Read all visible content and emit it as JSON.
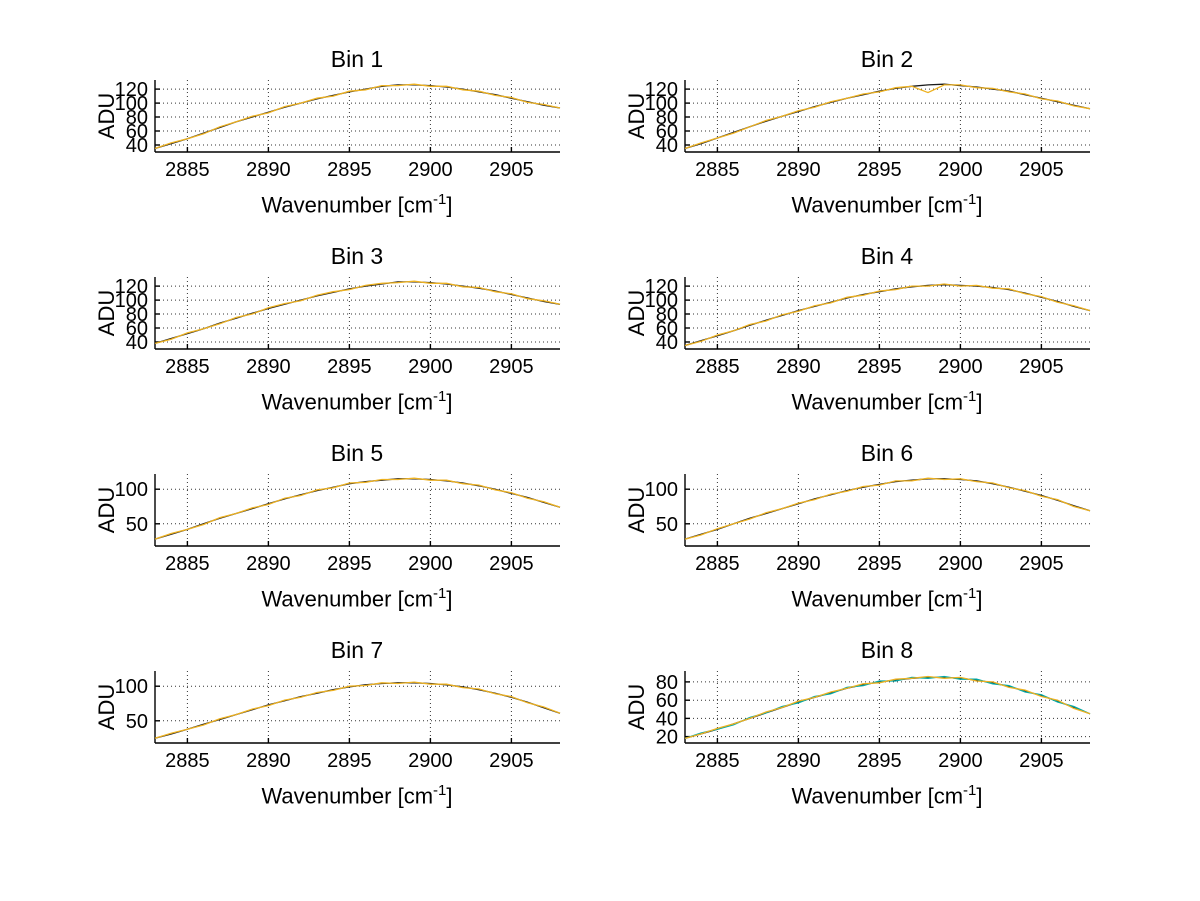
{
  "figure": {
    "background": "#ffffff"
  },
  "labels": {
    "ylabel": "ADU",
    "xlabel_base": "Wavenumber [cm",
    "xlabel_sup": "-1",
    "xlabel_close": "]"
  },
  "colors": {
    "axis": "#000000",
    "grid": "#333333",
    "trace_black": "#1a1a1a",
    "trace_yellow": "#edb120",
    "trace_teal": "#00a8a8"
  },
  "chart_x": [
    2883,
    2884,
    2885,
    2886,
    2887,
    2888,
    2889,
    2890,
    2891,
    2892,
    2893,
    2894,
    2895,
    2896,
    2897,
    2898,
    2899,
    2900,
    2901,
    2902,
    2903,
    2904,
    2905,
    2906,
    2907,
    2908
  ],
  "chart_data": [
    {
      "type": "line",
      "title": "Bin 1",
      "xlabel": "Wavenumber [cm^-1]",
      "ylabel": "ADU",
      "xlim": [
        2883,
        2908
      ],
      "ylim": [
        30,
        133
      ],
      "xticks": [
        2885,
        2890,
        2895,
        2900,
        2905
      ],
      "yticks": [
        40,
        60,
        80,
        100,
        120
      ],
      "grid": true,
      "legend": "none",
      "series": [
        {
          "name": "trace-dark",
          "color": "#1a1a1a",
          "values": [
            35,
            42,
            49,
            57,
            65,
            73,
            80,
            87,
            94,
            100,
            106,
            111,
            116,
            120,
            124,
            126,
            126,
            125,
            123,
            120,
            116,
            112,
            107,
            102,
            97,
            93
          ]
        },
        {
          "name": "trace-yellow",
          "color": "#edb120",
          "values": [
            35,
            43,
            49,
            56,
            66,
            73,
            81,
            86,
            95,
            100,
            107,
            110,
            117,
            119,
            125,
            125,
            127,
            124,
            124,
            119,
            117,
            111,
            108,
            101,
            98,
            93
          ]
        }
      ]
    },
    {
      "type": "line",
      "title": "Bin 2",
      "xlabel": "Wavenumber [cm^-1]",
      "ylabel": "ADU",
      "xlim": [
        2883,
        2908
      ],
      "ylim": [
        30,
        133
      ],
      "xticks": [
        2885,
        2890,
        2895,
        2900,
        2905
      ],
      "yticks": [
        40,
        60,
        80,
        100,
        120
      ],
      "grid": true,
      "legend": "none",
      "series": [
        {
          "name": "trace-dark",
          "color": "#1a1a1a",
          "values": [
            35,
            42,
            50,
            58,
            66,
            74,
            81,
            88,
            95,
            101,
            107,
            112,
            117,
            121,
            124,
            126,
            127,
            125,
            123,
            120,
            117,
            112,
            107,
            102,
            97,
            92
          ]
        },
        {
          "name": "trace-yellow",
          "color": "#edb120",
          "values": [
            35,
            43,
            50,
            57,
            66,
            75,
            81,
            89,
            94,
            102,
            107,
            113,
            116,
            122,
            124,
            115,
            126,
            126,
            122,
            121,
            116,
            113,
            106,
            103,
            96,
            92
          ]
        }
      ]
    },
    {
      "type": "line",
      "title": "Bin 3",
      "xlabel": "Wavenumber [cm^-1]",
      "ylabel": "ADU",
      "xlim": [
        2883,
        2908
      ],
      "ylim": [
        30,
        133
      ],
      "xticks": [
        2885,
        2890,
        2895,
        2900,
        2905
      ],
      "yticks": [
        40,
        60,
        80,
        100,
        120
      ],
      "grid": true,
      "legend": "none",
      "series": [
        {
          "name": "trace-dark",
          "color": "#1a1a1a",
          "values": [
            38,
            45,
            52,
            59,
            67,
            74,
            81,
            88,
            94,
            100,
            106,
            111,
            116,
            120,
            123,
            126,
            126,
            125,
            123,
            120,
            117,
            113,
            108,
            103,
            98,
            94
          ]
        },
        {
          "name": "trace-yellow",
          "color": "#edb120",
          "values": [
            38,
            44,
            53,
            59,
            66,
            75,
            80,
            89,
            95,
            99,
            107,
            112,
            115,
            121,
            124,
            125,
            127,
            124,
            124,
            119,
            118,
            112,
            109,
            102,
            99,
            94
          ]
        }
      ]
    },
    {
      "type": "line",
      "title": "Bin 4",
      "xlabel": "Wavenumber [cm^-1]",
      "ylabel": "ADU",
      "xlim": [
        2883,
        2908
      ],
      "ylim": [
        30,
        133
      ],
      "xticks": [
        2885,
        2890,
        2895,
        2900,
        2905
      ],
      "yticks": [
        40,
        60,
        80,
        100,
        120
      ],
      "grid": true,
      "legend": "none",
      "series": [
        {
          "name": "trace-dark",
          "color": "#1a1a1a",
          "values": [
            35,
            42,
            49,
            56,
            64,
            71,
            78,
            85,
            91,
            97,
            103,
            108,
            112,
            116,
            119,
            121,
            122,
            121,
            120,
            118,
            115,
            110,
            104,
            98,
            91,
            85
          ]
        },
        {
          "name": "trace-yellow",
          "color": "#edb120",
          "values": [
            35,
            41,
            50,
            56,
            65,
            70,
            79,
            84,
            92,
            96,
            104,
            107,
            113,
            115,
            120,
            120,
            123,
            120,
            121,
            117,
            116,
            109,
            105,
            97,
            92,
            85
          ]
        }
      ]
    },
    {
      "type": "line",
      "title": "Bin 5",
      "xlabel": "Wavenumber [cm^-1]",
      "ylabel": "ADU",
      "xlim": [
        2883,
        2908
      ],
      "ylim": [
        18,
        122
      ],
      "xticks": [
        2885,
        2890,
        2895,
        2900,
        2905
      ],
      "yticks": [
        50,
        100
      ],
      "grid": true,
      "legend": "none",
      "series": [
        {
          "name": "trace-dark",
          "color": "#1a1a1a",
          "values": [
            28,
            35,
            42,
            50,
            58,
            65,
            72,
            79,
            86,
            92,
            98,
            103,
            108,
            111,
            113,
            115,
            115,
            114,
            112,
            109,
            105,
            100,
            94,
            88,
            81,
            74
          ]
        },
        {
          "name": "trace-yellow",
          "color": "#edb120",
          "values": [
            28,
            36,
            42,
            49,
            59,
            65,
            73,
            78,
            87,
            91,
            99,
            102,
            109,
            110,
            114,
            114,
            116,
            113,
            113,
            108,
            106,
            99,
            95,
            87,
            82,
            74
          ]
        }
      ]
    },
    {
      "type": "line",
      "title": "Bin 6",
      "xlabel": "Wavenumber [cm^-1]",
      "ylabel": "ADU",
      "xlim": [
        2883,
        2908
      ],
      "ylim": [
        18,
        122
      ],
      "xticks": [
        2885,
        2890,
        2895,
        2900,
        2905
      ],
      "yticks": [
        50,
        100
      ],
      "grid": true,
      "legend": "none",
      "series": [
        {
          "name": "trace-dark",
          "color": "#1a1a1a",
          "values": [
            28,
            35,
            42,
            50,
            58,
            65,
            72,
            79,
            86,
            92,
            98,
            103,
            107,
            111,
            113,
            115,
            115,
            114,
            112,
            108,
            103,
            97,
            91,
            84,
            76,
            69
          ]
        },
        {
          "name": "trace-yellow",
          "color": "#edb120",
          "values": [
            28,
            34,
            43,
            50,
            57,
            66,
            72,
            80,
            85,
            93,
            97,
            104,
            106,
            112,
            112,
            116,
            114,
            115,
            111,
            109,
            102,
            98,
            90,
            85,
            75,
            69
          ]
        }
      ]
    },
    {
      "type": "line",
      "title": "Bin 7",
      "xlabel": "Wavenumber [cm^-1]",
      "ylabel": "ADU",
      "xlim": [
        2883,
        2908
      ],
      "ylim": [
        18,
        122
      ],
      "xticks": [
        2885,
        2890,
        2895,
        2900,
        2905
      ],
      "yticks": [
        50,
        100
      ],
      "grid": true,
      "legend": "none",
      "series": [
        {
          "name": "trace-dark",
          "color": "#1a1a1a",
          "values": [
            25,
            31,
            38,
            45,
            52,
            59,
            66,
            73,
            79,
            85,
            90,
            95,
            99,
            102,
            104,
            105,
            105,
            104,
            102,
            99,
            95,
            90,
            84,
            77,
            69,
            61
          ]
        },
        {
          "name": "trace-yellow",
          "color": "#edb120",
          "values": [
            25,
            32,
            38,
            44,
            53,
            59,
            67,
            72,
            80,
            84,
            91,
            94,
            100,
            101,
            105,
            104,
            106,
            103,
            103,
            98,
            96,
            89,
            85,
            76,
            70,
            61
          ]
        }
      ]
    },
    {
      "type": "line",
      "title": "Bin 8",
      "xlabel": "Wavenumber [cm^-1]",
      "ylabel": "ADU",
      "xlim": [
        2883,
        2908
      ],
      "ylim": [
        13,
        92
      ],
      "xticks": [
        2885,
        2890,
        2895,
        2900,
        2905
      ],
      "yticks": [
        20,
        40,
        60,
        80
      ],
      "grid": true,
      "legend": "none",
      "series": [
        {
          "name": "trace-dark",
          "color": "#1a1a1a",
          "values": [
            18,
            23,
            28,
            34,
            40,
            46,
            52,
            58,
            63,
            68,
            73,
            77,
            80,
            82,
            84,
            85,
            85,
            84,
            82,
            79,
            75,
            70,
            65,
            59,
            52,
            45
          ]
        },
        {
          "name": "trace-teal",
          "color": "#00a8a8",
          "values": [
            18,
            24,
            28,
            33,
            41,
            46,
            53,
            57,
            64,
            67,
            74,
            76,
            81,
            81,
            85,
            84,
            86,
            83,
            83,
            78,
            76,
            69,
            66,
            58,
            53,
            45
          ]
        },
        {
          "name": "trace-yellow",
          "color": "#edb120",
          "values": [
            18,
            23,
            29,
            34,
            40,
            47,
            52,
            59,
            63,
            69,
            73,
            78,
            79,
            83,
            84,
            86,
            84,
            85,
            81,
            80,
            74,
            71,
            64,
            60,
            51,
            45
          ]
        }
      ]
    }
  ]
}
